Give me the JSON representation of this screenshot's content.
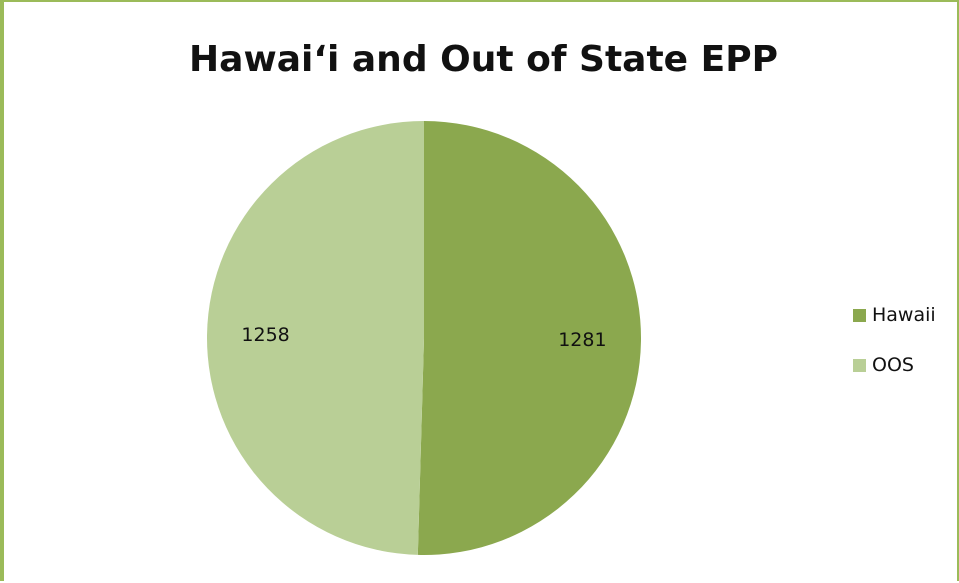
{
  "chart_data": {
    "type": "pie",
    "title": "Hawai‘i and Out of State EPP",
    "categories": [
      "Hawaii",
      "OOS"
    ],
    "values": [
      1281,
      1258
    ],
    "colors": [
      "#8ba84e",
      "#b9cf96"
    ],
    "legend_position": "right",
    "data_labels": [
      "1281",
      "1258"
    ]
  }
}
